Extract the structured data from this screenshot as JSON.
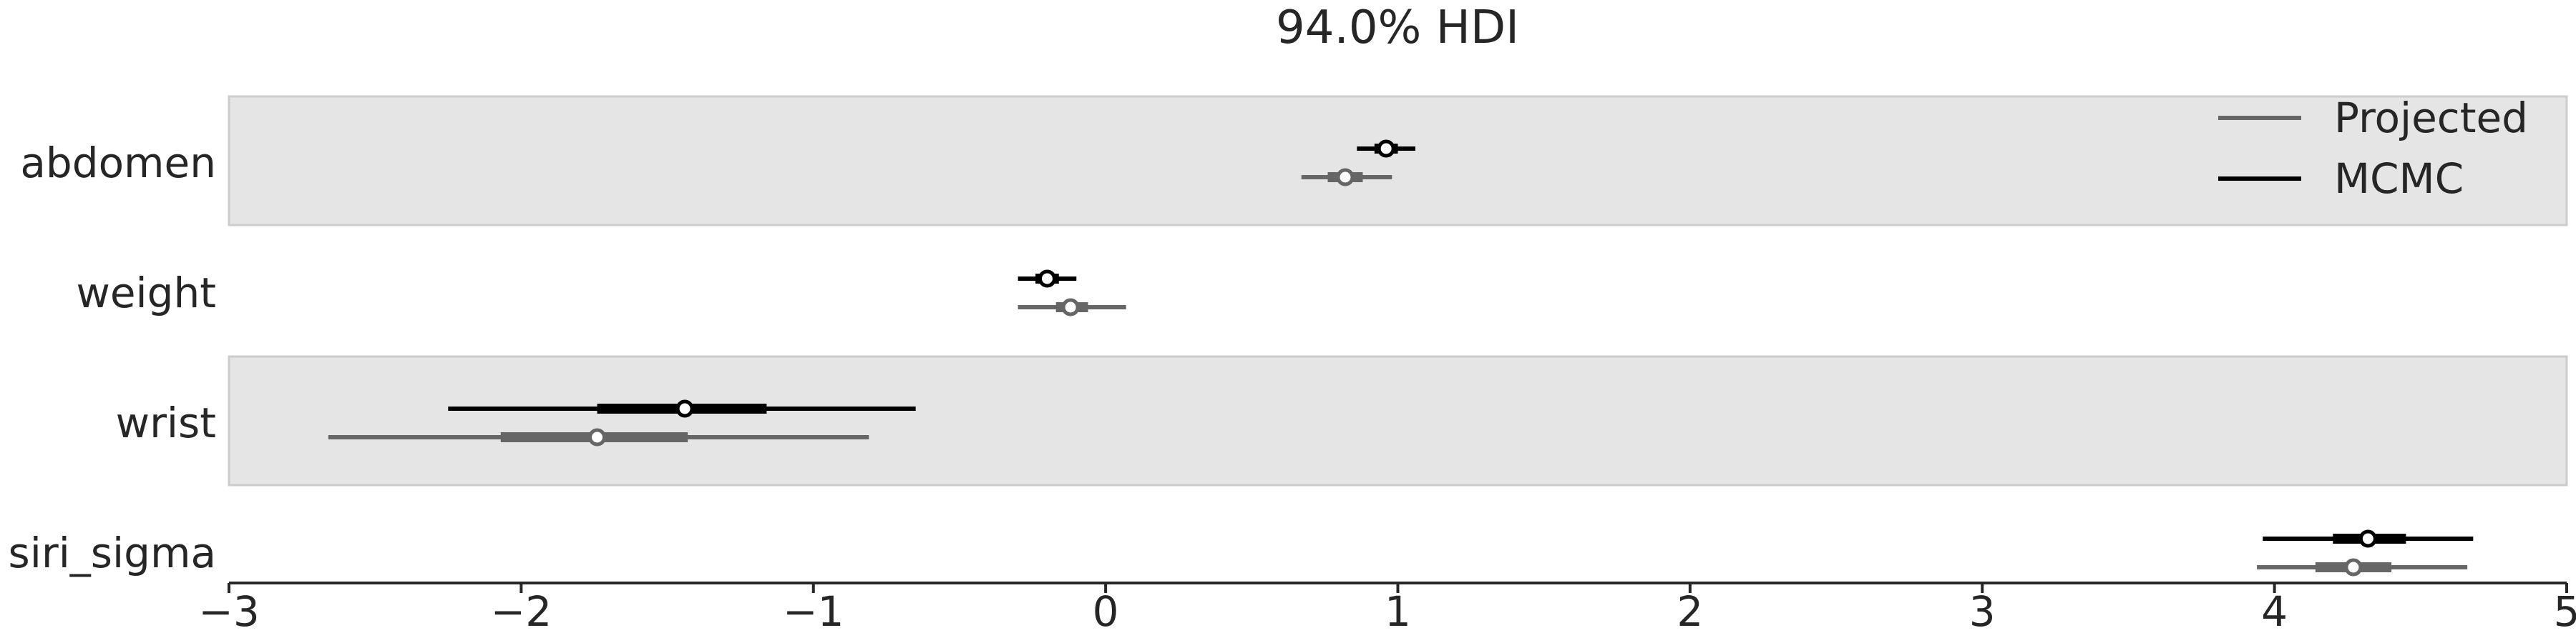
{
  "chart_data": {
    "type": "forest",
    "title": "94.0% HDI",
    "xlabel": "",
    "ylabel": "",
    "xlim": [
      -3,
      5
    ],
    "xticks": [
      -3,
      -2,
      -1,
      0,
      1,
      2,
      3,
      4,
      5
    ],
    "xtick_labels": [
      "−3",
      "−2",
      "−1",
      "0",
      "1",
      "2",
      "3",
      "4",
      "5"
    ],
    "variables": [
      "abdomen",
      "weight",
      "wrist",
      "siri_sigma"
    ],
    "shaded_rows": [
      "abdomen",
      "wrist"
    ],
    "legend": {
      "placement": "top-right",
      "entries": [
        "Projected",
        "MCMC"
      ]
    },
    "series": [
      {
        "name": "MCMC",
        "color": "#000000",
        "estimates": [
          {
            "variable": "abdomen",
            "hdi_low": 0.86,
            "iqr_low": 0.92,
            "mean": 0.96,
            "iqr_high": 1.0,
            "hdi_high": 1.06
          },
          {
            "variable": "weight",
            "hdi_low": -0.3,
            "iqr_low": -0.24,
            "mean": -0.2,
            "iqr_high": -0.16,
            "hdi_high": -0.1
          },
          {
            "variable": "wrist",
            "hdi_low": -2.25,
            "iqr_low": -1.74,
            "mean": -1.44,
            "iqr_high": -1.16,
            "hdi_high": -0.65
          },
          {
            "variable": "siri_sigma",
            "hdi_low": 3.96,
            "iqr_low": 4.2,
            "mean": 4.32,
            "iqr_high": 4.45,
            "hdi_high": 4.68
          }
        ]
      },
      {
        "name": "Projected",
        "color": "#666666",
        "estimates": [
          {
            "variable": "abdomen",
            "hdi_low": 0.67,
            "iqr_low": 0.76,
            "mean": 0.82,
            "iqr_high": 0.88,
            "hdi_high": 0.98
          },
          {
            "variable": "weight",
            "hdi_low": -0.3,
            "iqr_low": -0.17,
            "mean": -0.12,
            "iqr_high": -0.06,
            "hdi_high": 0.07
          },
          {
            "variable": "wrist",
            "hdi_low": -2.66,
            "iqr_low": -2.07,
            "mean": -1.74,
            "iqr_high": -1.43,
            "hdi_high": -0.81
          },
          {
            "variable": "siri_sigma",
            "hdi_low": 3.94,
            "iqr_low": 4.14,
            "mean": 4.27,
            "iqr_high": 4.4,
            "hdi_high": 4.66
          }
        ]
      }
    ]
  }
}
